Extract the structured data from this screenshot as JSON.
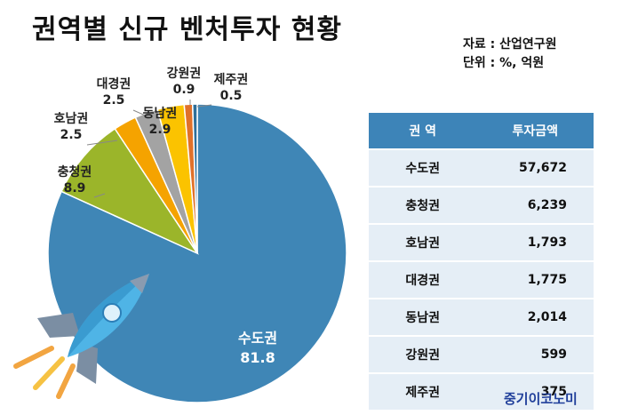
{
  "title": "권역별 신규 벤처투자 현황",
  "source": "자료 : 산업연구원",
  "unit": "단위 : %, 억원",
  "brand": "중기이코노미",
  "chart_data": {
    "type": "pie",
    "title": "권역별 신규 벤처투자 현황",
    "slices": [
      {
        "label": "수도권",
        "value": 81.8,
        "color": "#3f86b6"
      },
      {
        "label": "충청권",
        "value": 8.9,
        "color": "#9bb52a"
      },
      {
        "label": "호남권",
        "value": 2.5,
        "color": "#f5a300"
      },
      {
        "label": "대경권",
        "value": 2.5,
        "color": "#a3a3a3"
      },
      {
        "label": "동남권",
        "value": 2.9,
        "color": "#fbc300"
      },
      {
        "label": "강원권",
        "value": 0.9,
        "color": "#e0712a"
      },
      {
        "label": "제주권",
        "value": 0.5,
        "color": "#2e6f99"
      }
    ]
  },
  "table": {
    "headers": [
      "권 역",
      "투자금액"
    ],
    "rows": [
      [
        "수도권",
        "57,672"
      ],
      [
        "충청권",
        "6,239"
      ],
      [
        "호남권",
        "1,793"
      ],
      [
        "대경권",
        "1,775"
      ],
      [
        "동남권",
        "2,014"
      ],
      [
        "강원권",
        "599"
      ],
      [
        "제주권",
        "375"
      ]
    ]
  }
}
